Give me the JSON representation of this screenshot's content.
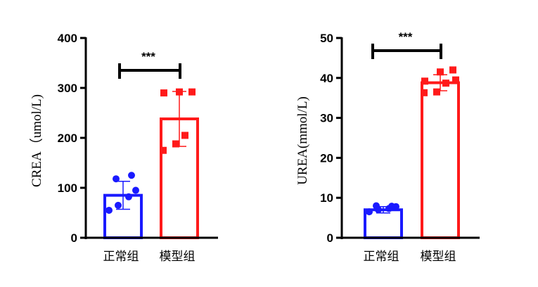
{
  "chart_data": [
    {
      "type": "bar",
      "categories": [
        "正常组",
        "模型组"
      ],
      "colors": [
        "#1a1aff",
        "#ff1a1a"
      ],
      "ylabel": "CREA（umol/L)",
      "ylim": [
        0,
        400
      ],
      "yticks": [
        0,
        100,
        200,
        300,
        400
      ],
      "significance": "***",
      "means": [
        85,
        238
      ],
      "sd": [
        28,
        55
      ],
      "points": [
        [
          55,
          65,
          82,
          95,
          118,
          125
        ],
        [
          175,
          188,
          205,
          290,
          292,
          292
        ]
      ]
    },
    {
      "type": "bar",
      "categories": [
        "正常组",
        "模型组"
      ],
      "colors": [
        "#1a1aff",
        "#ff1a1a"
      ],
      "ylabel": "UREA(mmol/L)",
      "ylim": [
        0,
        50
      ],
      "yticks": [
        0,
        10,
        20,
        30,
        40,
        50
      ],
      "significance": "***",
      "means": [
        7.0,
        38.8
      ],
      "sd": [
        0.8,
        2.0
      ],
      "points": [
        [
          6.5,
          7.0,
          7.3,
          7.8,
          8.0,
          7.9
        ],
        [
          36.3,
          36.5,
          38.7,
          39.2,
          41.5,
          42.0,
          39.5
        ]
      ]
    }
  ]
}
